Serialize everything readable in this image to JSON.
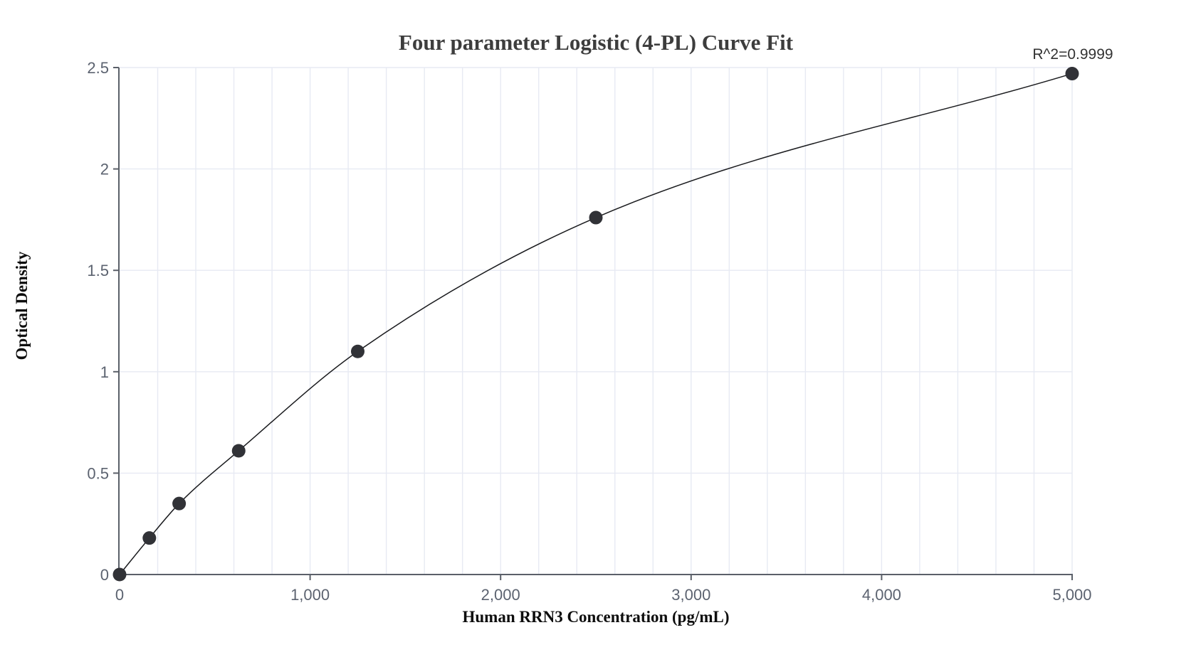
{
  "chart_data": {
    "type": "scatter",
    "title": "Four parameter Logistic (4-PL) Curve Fit",
    "r_squared_label": "R^2=0.9999",
    "xlabel": "Human RRN3 Concentration (pg/mL)",
    "ylabel": "Optical Density",
    "x": [
      0,
      156.25,
      312.5,
      625,
      1250,
      2500,
      5000
    ],
    "y": [
      0,
      0.18,
      0.35,
      0.61,
      1.1,
      1.76,
      2.47
    ],
    "xlim": [
      0,
      5000
    ],
    "ylim": [
      0,
      2.5
    ],
    "x_tick_values": [
      0,
      1000,
      2000,
      3000,
      4000,
      5000
    ],
    "x_tick_labels": [
      "0",
      "1,000",
      "2,000",
      "3,000",
      "4,000",
      "5,000"
    ],
    "y_tick_values": [
      0,
      0.5,
      1,
      1.5,
      2,
      2.5
    ],
    "y_tick_labels": [
      "0",
      "0.5",
      "1",
      "1.5",
      "2",
      "2.5"
    ],
    "x_minor_grid_step": 200,
    "y_grid_step": 0.5,
    "grid_on": true,
    "legend": "none",
    "marker_shape": "circle",
    "colors": {
      "background": "#ffffff",
      "grid": "#e7eaf3",
      "axis": "#5b6069",
      "tick_text": "#5c6370",
      "title_text": "#3d3d3d",
      "axis_label_text": "#0d0d0d",
      "r2_text": "#333333",
      "curve": "#1a1b1e",
      "point": "#313237"
    }
  }
}
